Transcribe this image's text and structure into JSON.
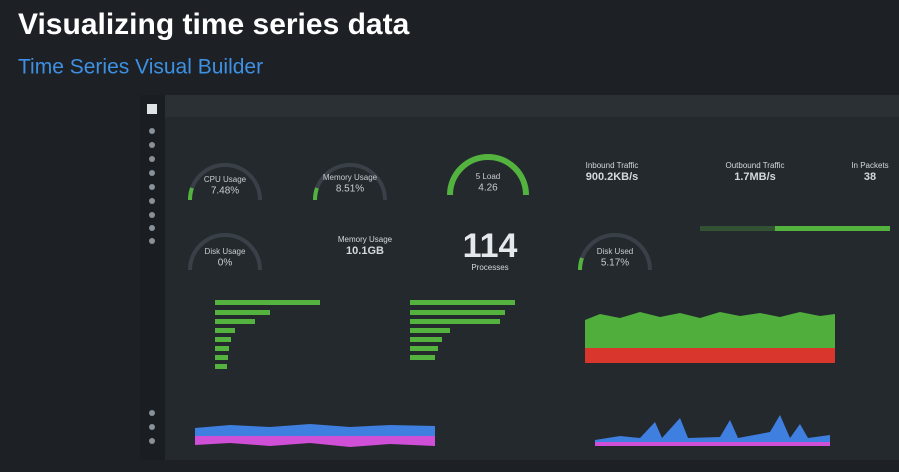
{
  "slide": {
    "title": "Visualizing time series data",
    "subtitle": "Time Series Visual Builder"
  },
  "dashboard": {
    "gauges": [
      {
        "label": "CPU Usage",
        "value": "7.48%"
      },
      {
        "label": "Memory Usage",
        "value": "8.51%"
      },
      {
        "label": "5 Load",
        "value": "4.26"
      },
      {
        "label": "Disk Usage",
        "value": "0%"
      },
      {
        "label": "Disk Used",
        "value": "5.17%"
      }
    ],
    "metrics": [
      {
        "label": "Inbound Traffic",
        "value": "900.2KB/s"
      },
      {
        "label": "Outbound Traffic",
        "value": "1.7MB/s"
      },
      {
        "label": "In Packets",
        "value": "38"
      },
      {
        "label": "Memory Usage",
        "value": "10.1GB"
      }
    ],
    "big_number": {
      "value": "114",
      "label": "Processes"
    }
  }
}
